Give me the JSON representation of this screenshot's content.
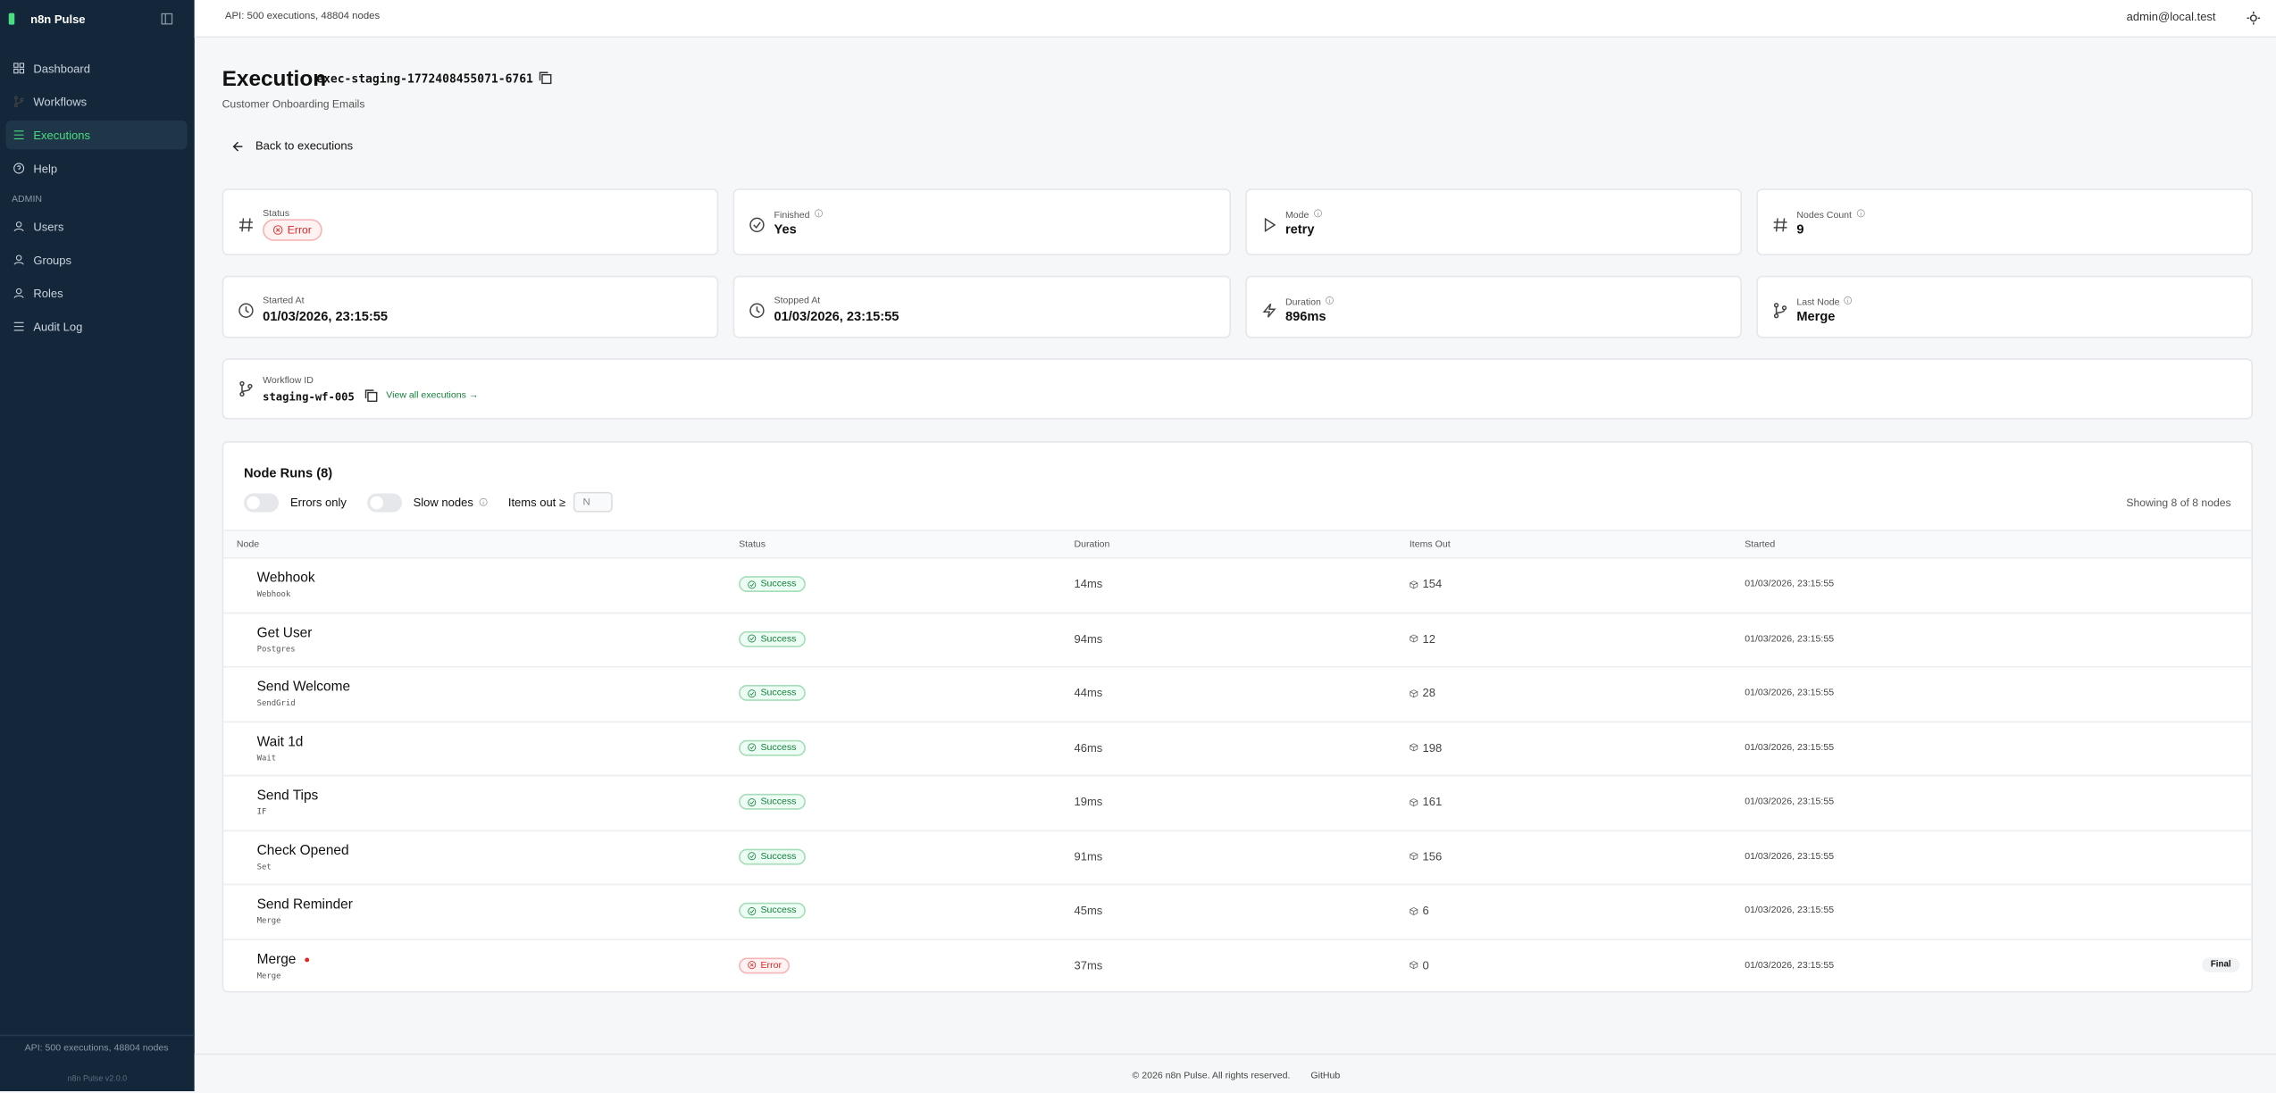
{
  "sidebar": {
    "brand": "n8n Pulse",
    "nav": [
      "Dashboard",
      "Workflows",
      "Executions",
      "Help"
    ],
    "section": "ADMIN",
    "admin_nav": [
      "Users",
      "Groups",
      "Roles",
      "Audit Log"
    ],
    "footer_status": "API: 500 executions, 48804 nodes",
    "version": "n8n Pulse v2.0.0"
  },
  "topbar": {
    "status": "API: 500 executions, 48804 nodes",
    "user": "admin@local.test"
  },
  "header": {
    "title": "Execution",
    "id": "exec-staging-1772408455071-6761",
    "subtitle": "Customer Onboarding Emails",
    "back": "Back to executions"
  },
  "cards": [
    {
      "label": "Status",
      "value": "Error"
    },
    {
      "label": "Finished",
      "value": "Yes"
    },
    {
      "label": "Mode",
      "value": "retry"
    },
    {
      "label": "Nodes Count",
      "value": 9
    },
    {
      "label": "Started At",
      "value": "01/03/2026, 23:15:55"
    },
    {
      "label": "Stopped At",
      "value": "01/03/2026, 23:15:55"
    },
    {
      "label": "Duration",
      "value": "896ms"
    },
    {
      "label": "Last Node",
      "value": "Merge"
    }
  ],
  "workflow": {
    "label": "Workflow ID",
    "value": "staging-wf-005",
    "link": "View all executions →"
  },
  "node_runs": {
    "title": "Node Runs (8)",
    "filters": [
      "Errors only",
      "Slow nodes"
    ],
    "items_out_label": "Items out ≥",
    "items_out_placeholder": "N",
    "showing": "Showing 8 of 8 nodes",
    "columns": [
      "Node",
      "Status",
      "Duration",
      "Items Out",
      "Started"
    ],
    "rows": [
      {
        "node": "Webhook",
        "type": "Webhook",
        "status": "Success",
        "duration": "14ms",
        "items_out": 154,
        "started": "01/03/2026, 23:15:55"
      },
      {
        "node": "Get User",
        "type": "Postgres",
        "status": "Success",
        "duration": "94ms",
        "items_out": 12,
        "started": "01/03/2026, 23:15:55"
      },
      {
        "node": "Send Welcome",
        "type": "SendGrid",
        "status": "Success",
        "duration": "44ms",
        "items_out": 28,
        "started": "01/03/2026, 23:15:55"
      },
      {
        "node": "Wait 1d",
        "type": "Wait",
        "status": "Success",
        "duration": "46ms",
        "items_out": 198,
        "started": "01/03/2026, 23:15:55"
      },
      {
        "node": "Send Tips",
        "type": "IF",
        "status": "Success",
        "duration": "19ms",
        "items_out": 161,
        "started": "01/03/2026, 23:15:55"
      },
      {
        "node": "Check Opened",
        "type": "Set",
        "status": "Success",
        "duration": "91ms",
        "items_out": 156,
        "started": "01/03/2026, 23:15:55"
      },
      {
        "node": "Send Reminder",
        "type": "Merge",
        "status": "Success",
        "duration": "45ms",
        "items_out": 6,
        "started": "01/03/2026, 23:15:55"
      },
      {
        "node": "Merge",
        "type": "Merge",
        "status": "Error",
        "duration": "37ms",
        "items_out": 0,
        "started": "01/03/2026, 23:15:55",
        "badge": "Final"
      }
    ]
  },
  "footer": {
    "copyright": "© 2026 n8n Pulse. All rights reserved.",
    "link": "GitHub"
  }
}
